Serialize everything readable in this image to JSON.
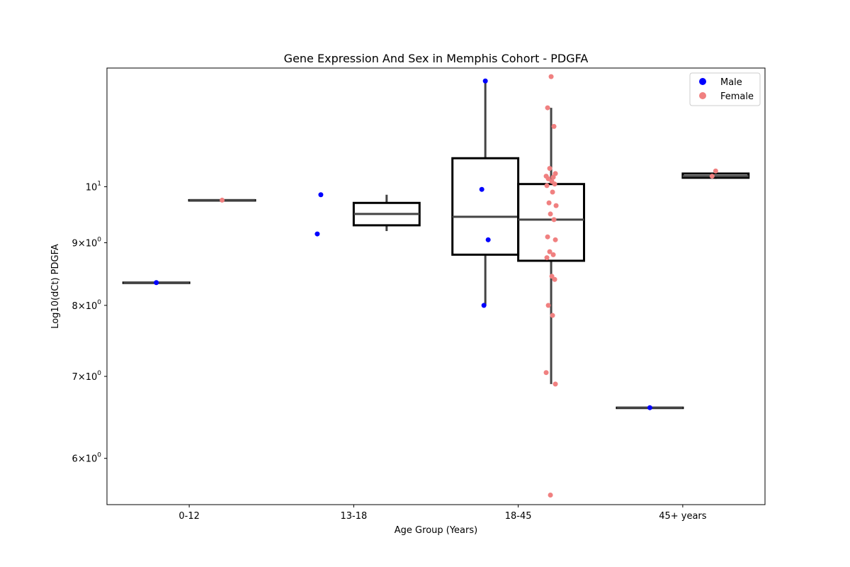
{
  "chart_data": {
    "type": "box",
    "title": "Gene Expression And Sex in Memphis Cohort - PDGFA",
    "xlabel": "Age Group (Years)",
    "ylabel": "Log10(dCt) PDGFA",
    "yscale": "log",
    "ylim": [
      5.5,
      12.5
    ],
    "y_tick_labels": [
      {
        "value": 6,
        "mantissa": "6",
        "base": "10",
        "exp": "0"
      },
      {
        "value": 7,
        "mantissa": "7",
        "base": "10",
        "exp": "0"
      },
      {
        "value": 8,
        "mantissa": "8",
        "base": "10",
        "exp": "0"
      },
      {
        "value": 9,
        "mantissa": "9",
        "base": "10",
        "exp": "0"
      },
      {
        "value": 10,
        "mantissa": "",
        "base": "10",
        "exp": "1"
      }
    ],
    "categories": [
      "0-12",
      "13-18",
      "18-45",
      "45+ years"
    ],
    "grid": false,
    "legend_position": "top-right",
    "series": [
      {
        "name": "Male",
        "color": "#0000ff",
        "boxes": [
          {
            "category": "0-12",
            "min": 8.35,
            "q1": 8.35,
            "median": 8.35,
            "q3": 8.35,
            "max": 8.35
          },
          null,
          {
            "category": "18-45",
            "min": 8.0,
            "q1": 8.8,
            "median": 9.45,
            "q3": 10.55,
            "max": 12.2
          },
          {
            "category": "45+ years",
            "min": 6.6,
            "q1": 6.6,
            "median": 6.6,
            "q3": 6.6,
            "max": 6.6
          }
        ],
        "points": {
          "0-12": [
            8.35
          ],
          "13-18": [
            9.85,
            9.15
          ],
          "18-45": [
            12.2,
            9.95,
            9.05,
            8.0
          ],
          "45+ years": [
            6.6
          ]
        }
      },
      {
        "name": "Female",
        "color": "#f08080",
        "boxes": [
          {
            "category": "0-12",
            "min": 9.75,
            "q1": 9.75,
            "median": 9.75,
            "q3": 9.75,
            "max": 9.75
          },
          {
            "category": "13-18",
            "min": 9.2,
            "q1": 9.3,
            "median": 9.5,
            "q3": 9.7,
            "max": 9.85
          },
          {
            "category": "18-45",
            "min": 6.9,
            "q1": 8.7,
            "median": 9.4,
            "q3": 10.05,
            "max": 11.6
          },
          {
            "category": "45+ years",
            "min": 10.15,
            "q1": 10.17,
            "median": 10.2,
            "q3": 10.25,
            "max": 10.3
          }
        ],
        "points": {
          "0-12": [
            9.75
          ],
          "18-45": [
            12.3,
            11.6,
            11.2,
            10.35,
            10.25,
            10.2,
            10.18,
            10.15,
            10.1,
            10.05,
            10.02,
            9.9,
            9.7,
            9.65,
            9.5,
            9.4,
            9.1,
            9.05,
            8.85,
            8.8,
            8.75,
            8.45,
            8.4,
            8.0,
            7.85,
            7.05,
            6.9,
            5.6
          ],
          "45+ years": [
            10.3,
            10.2
          ]
        }
      }
    ]
  }
}
